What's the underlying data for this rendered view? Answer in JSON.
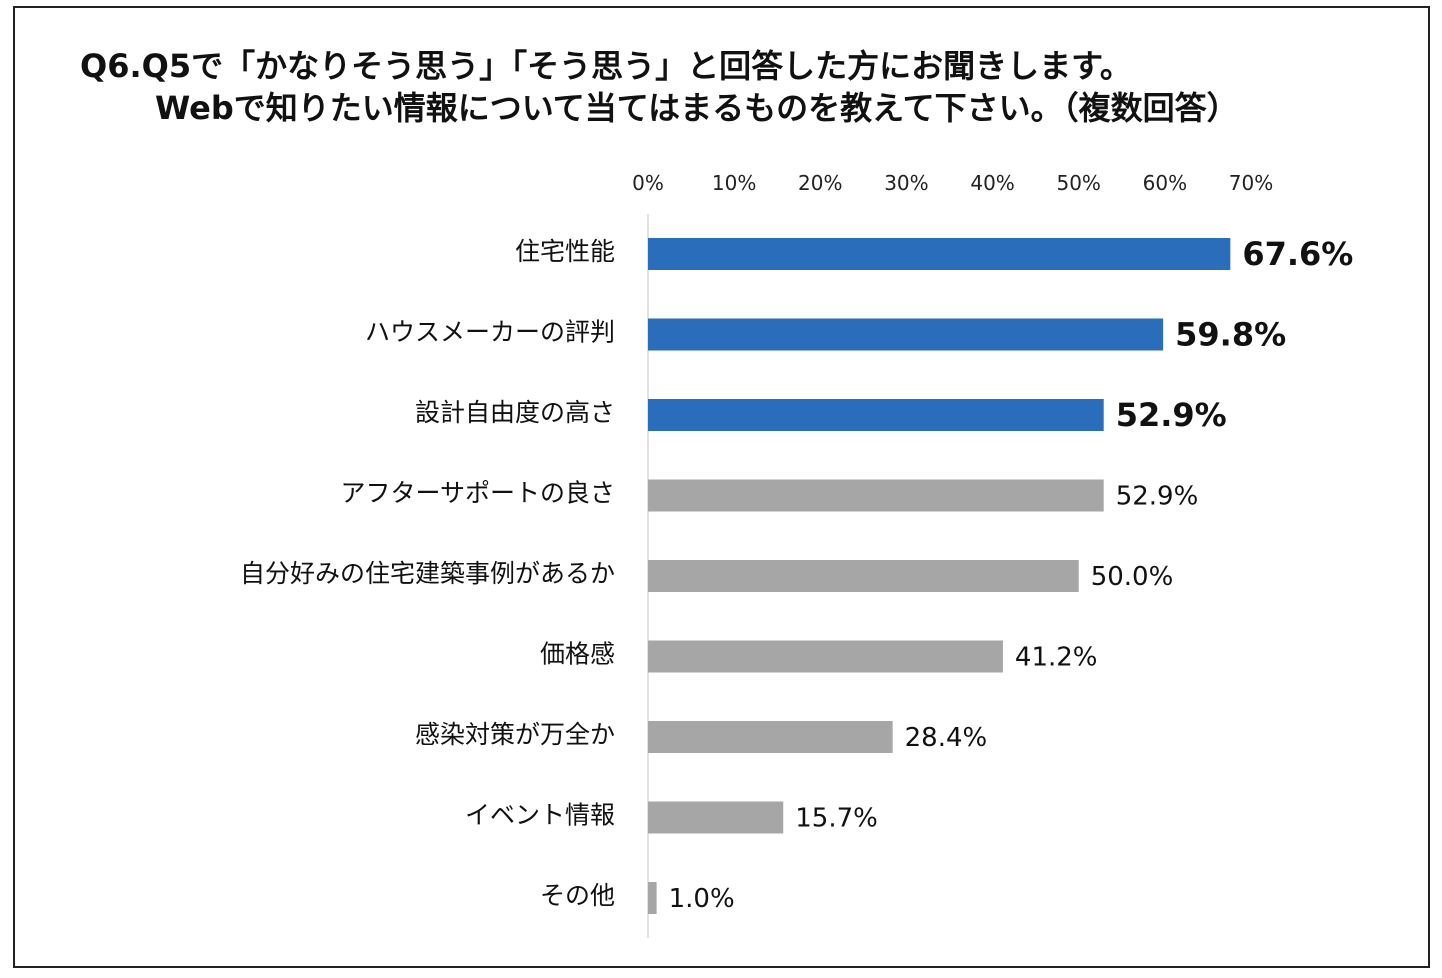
{
  "title_lines": [
    "Q6.Q5で「かなりそう思う」「そう思う」と回答した方にお聞きします。",
    "Webで知りたい情報について当てはまるものを教えて下さい。（複数回答）"
  ],
  "chart_data": {
    "type": "bar",
    "orientation": "horizontal",
    "title": "Q6.Q5で「かなりそう思う」「そう思う」と回答した方にお聞きします。 Webで知りたい情報について当てはまるものを教えて下さい。（複数回答）",
    "xlim": [
      0,
      70
    ],
    "tick_values": [
      0,
      10,
      20,
      30,
      40,
      50,
      60,
      70
    ],
    "tick_labels": [
      "0%",
      "10%",
      "20%",
      "30%",
      "40%",
      "50%",
      "60%",
      "70%"
    ],
    "axis_position": "top",
    "grid": false,
    "legend": "none",
    "categories": [
      "住宅性能",
      "ハウスメーカーの評判",
      "設計自由度の高さ",
      "アフターサポートの良さ",
      "自分好みの住宅建築事例があるか",
      "価格感",
      "感染対策が万全か",
      "イベント情報",
      "その他"
    ],
    "values": [
      67.6,
      59.8,
      52.9,
      52.9,
      50.0,
      41.2,
      28.4,
      15.7,
      1.0
    ],
    "value_labels": [
      "67.6%",
      "59.8%",
      "52.9%",
      "52.9%",
      "50.0%",
      "41.2%",
      "28.4%",
      "15.7%",
      "1.0%"
    ],
    "highlighted": [
      true,
      true,
      true,
      false,
      false,
      false,
      false,
      false,
      false
    ],
    "colors": {
      "highlight": "#2a6ebb",
      "normal": "#a6a6a6",
      "axis": "#d9d9d9"
    }
  }
}
